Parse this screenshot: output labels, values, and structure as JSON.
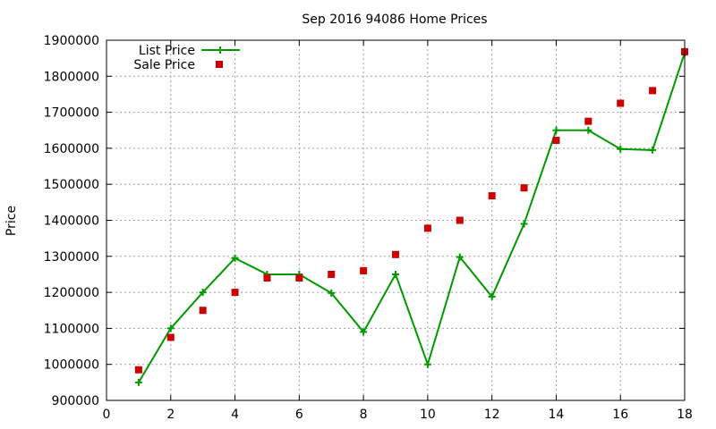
{
  "chart_data": {
    "type": "line",
    "title": "Sep 2016 94086 Home Prices",
    "xlabel": "",
    "ylabel": "Price",
    "xlim": [
      0,
      18
    ],
    "ylim": [
      900000,
      1900000
    ],
    "xticks": [
      "0",
      "2",
      "4",
      "6",
      "8",
      "10",
      "12",
      "14",
      "16",
      "18"
    ],
    "yticks": [
      "900000",
      "1000000",
      "1100000",
      "1200000",
      "1300000",
      "1400000",
      "1500000",
      "1600000",
      "1700000",
      "1800000",
      "1900000"
    ],
    "grid": true,
    "legend_position": "top-left",
    "series": [
      {
        "name": "List Price",
        "style": "lines+points",
        "color": "#009900",
        "x": [
          1,
          2,
          3,
          4,
          5,
          6,
          7,
          8,
          9,
          10,
          11,
          12,
          13,
          14,
          15,
          16,
          17,
          18
        ],
        "y": [
          950000,
          1100000,
          1200000,
          1295000,
          1250000,
          1250000,
          1198000,
          1090000,
          1250000,
          1000000,
          1298000,
          1188000,
          1390000,
          1650000,
          1650000,
          1598000,
          1595000,
          1865000
        ]
      },
      {
        "name": "Sale Price",
        "style": "points",
        "color": "#cc0000",
        "x": [
          1,
          2,
          3,
          4,
          5,
          6,
          7,
          8,
          9,
          10,
          11,
          12,
          13,
          14,
          15,
          16,
          17,
          18
        ],
        "y": [
          985000,
          1075000,
          1150000,
          1200000,
          1240000,
          1240000,
          1250000,
          1260000,
          1305000,
          1378000,
          1400000,
          1468000,
          1490000,
          1622000,
          1675000,
          1725000,
          1760000,
          1868000
        ]
      }
    ]
  }
}
